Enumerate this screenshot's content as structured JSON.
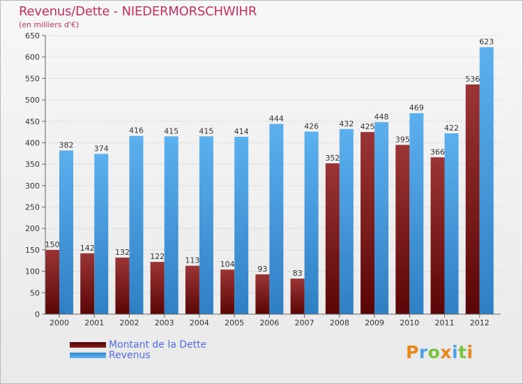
{
  "chart_data": {
    "type": "bar",
    "title": "Revenus/Dette - NIEDERMORSCHWIHR",
    "subtitle": "(en milliers d'€)",
    "xlabel": "",
    "ylabel": "",
    "ylim": [
      0,
      650
    ],
    "yticks": [
      0,
      50,
      100,
      150,
      200,
      250,
      300,
      350,
      400,
      450,
      500,
      550,
      600,
      650
    ],
    "categories": [
      "2000",
      "2001",
      "2002",
      "2003",
      "2004",
      "2005",
      "2006",
      "2007",
      "2008",
      "2009",
      "2010",
      "2011",
      "2012"
    ],
    "series": [
      {
        "name": "Montant de la Dette",
        "color": "#7b1a1a",
        "values": [
          150,
          142,
          132,
          122,
          113,
          104,
          93,
          83,
          352,
          425,
          395,
          366,
          536
        ]
      },
      {
        "name": "Revenus",
        "color": "#4aa3e6",
        "values": [
          382,
          374,
          416,
          415,
          415,
          414,
          444,
          426,
          432,
          448,
          469,
          422,
          623
        ]
      }
    ],
    "legend_position": "bottom-left",
    "grid": true
  },
  "legend": {
    "items": [
      {
        "label": "Montant de la Dette",
        "color": "#6b0f0f"
      },
      {
        "label": "Revenus",
        "color": "#4aa3e6"
      }
    ]
  },
  "logo": {
    "letters": [
      "P",
      "r",
      "o",
      "x",
      "i",
      "t",
      "i"
    ],
    "colors": [
      "#e8871c",
      "#4aa3e6",
      "#7cc142",
      "#e8871c",
      "#4aa3e6",
      "#7cc142",
      "#e8871c"
    ]
  }
}
